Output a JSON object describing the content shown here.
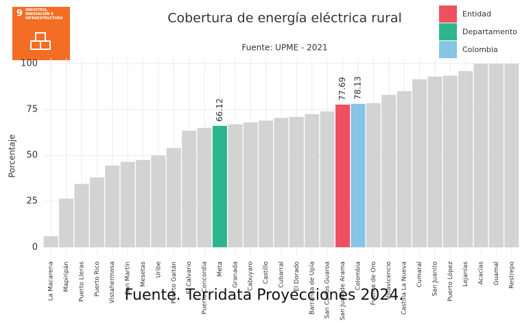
{
  "badge": {
    "number": "9",
    "text": "INDUSTRIA, INNOVACIÓN E INFRAESTRUCTURA"
  },
  "caption": "Fuente. Terridata Proyecciones 2024.",
  "chart_data": {
    "type": "bar",
    "title": "Cobertura de energía eléctrica rural",
    "subtitle": "Fuente: UPME - 2021",
    "y_label": "Porcentaje",
    "categories": [
      "La Macarena",
      "Mapiripán",
      "Puerto Lleras",
      "Puerto Rico",
      "Vistahermosa",
      "San Martín",
      "Mesetas",
      "Uribe",
      "Puerto Gaitán",
      "El Calvario",
      "Puerto Concordia",
      "Meta",
      "Granada",
      "Cabuyaro",
      "Castillo",
      "Cubarral",
      "El Dorado",
      "Barranca de Upía",
      "San Carlos Guaroa",
      "San Juan de Arama",
      "Colombia",
      "Fuente de Oro",
      "Villavicencio",
      "Castilla La Nueva",
      "Cumaral",
      "San Juanito",
      "Puerto López",
      "Lejanías",
      "Acacías",
      "Guamal",
      "Restrepo"
    ],
    "values": [
      6,
      26.5,
      34.5,
      38,
      44.5,
      46.5,
      47.5,
      50,
      54,
      63.5,
      65,
      66.12,
      67,
      68,
      69,
      70.5,
      71,
      72.5,
      74,
      77.69,
      78.13,
      78.5,
      83,
      85,
      91.5,
      93,
      93.5,
      96,
      100,
      100,
      100
    ],
    "value_labels": [
      null,
      null,
      null,
      null,
      null,
      null,
      null,
      null,
      null,
      null,
      null,
      "66.12",
      null,
      null,
      null,
      null,
      null,
      null,
      null,
      "77.69",
      "78.13",
      null,
      null,
      null,
      null,
      null,
      null,
      null,
      null,
      null,
      null
    ],
    "colors": [
      "#d3d3d3",
      "#d3d3d3",
      "#d3d3d3",
      "#d3d3d3",
      "#d3d3d3",
      "#d3d3d3",
      "#d3d3d3",
      "#d3d3d3",
      "#d3d3d3",
      "#d3d3d3",
      "#d3d3d3",
      "#2db58e",
      "#d3d3d3",
      "#d3d3d3",
      "#d3d3d3",
      "#d3d3d3",
      "#d3d3d3",
      "#d3d3d3",
      "#d3d3d3",
      "#ef5060",
      "#87c4e6",
      "#d3d3d3",
      "#d3d3d3",
      "#d3d3d3",
      "#d3d3d3",
      "#d3d3d3",
      "#d3d3d3",
      "#d3d3d3",
      "#d3d3d3",
      "#d3d3d3",
      "#d3d3d3"
    ],
    "legend": [
      {
        "name": "Entidad",
        "color": "#ef5060"
      },
      {
        "name": "Departamento",
        "color": "#2db58e"
      },
      {
        "name": "Colombia",
        "color": "#87c4e6"
      }
    ],
    "ylim": [
      -4,
      103
    ],
    "yticks": [
      0,
      25,
      50,
      75,
      100
    ],
    "grid": true
  }
}
